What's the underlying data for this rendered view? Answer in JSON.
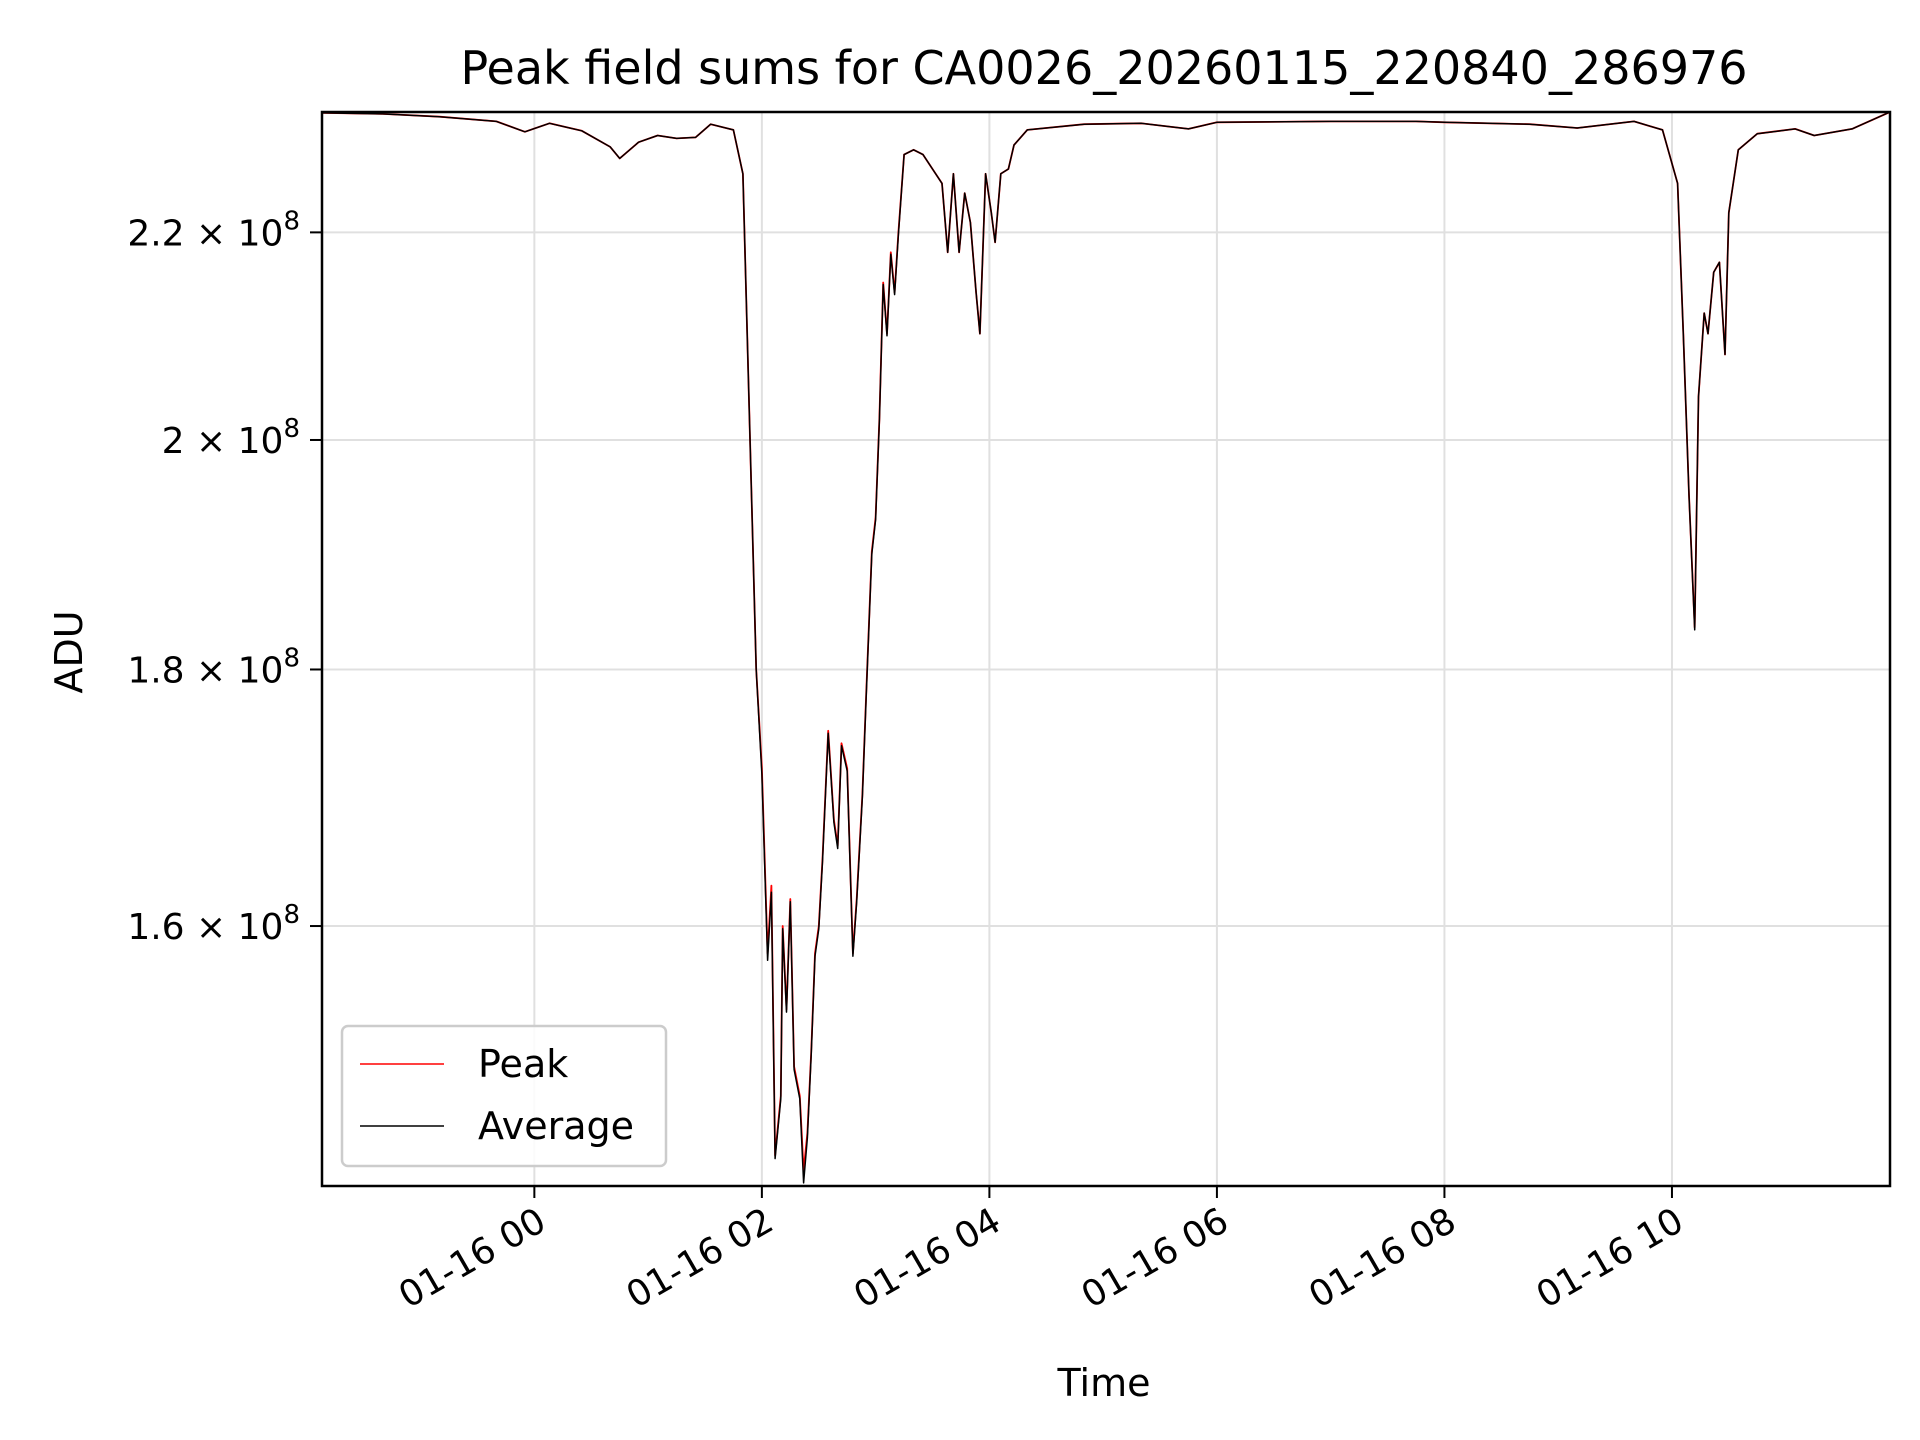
{
  "chart_data": {
    "type": "line",
    "title": "Peak field sums for CA0026_20260115_220840_286976",
    "xlabel": "Time",
    "ylabel": "ADU",
    "yscale": "log",
    "grid": true,
    "legend_position": "lower-left",
    "xlim": [
      "2026-01-15 22:08",
      "2026-01-16 11:55"
    ],
    "ylim": [
      142000000,
      232500000
    ],
    "x_ticks": [
      {
        "x": "2026-01-16 00:00",
        "label": "01-16 00"
      },
      {
        "x": "2026-01-16 02:00",
        "label": "01-16 02"
      },
      {
        "x": "2026-01-16 04:00",
        "label": "01-16 04"
      },
      {
        "x": "2026-01-16 06:00",
        "label": "01-16 06"
      },
      {
        "x": "2026-01-16 08:00",
        "label": "01-16 08"
      },
      {
        "x": "2026-01-16 10:00",
        "label": "01-16 10"
      }
    ],
    "y_ticks": [
      {
        "y": 160000000,
        "mantissa": "1.6",
        "base": "10",
        "exponent": "8"
      },
      {
        "y": 180000000,
        "mantissa": "1.8",
        "base": "10",
        "exponent": "8"
      },
      {
        "y": 200000000,
        "mantissa": "2",
        "base": "10",
        "exponent": "8"
      },
      {
        "y": 220000000,
        "mantissa": "2.2",
        "base": "10",
        "exponent": "8"
      }
    ],
    "series": [
      {
        "name": "Peak",
        "color": "#ff0000",
        "points": [
          [
            "2026-01-15 22:08",
            232400000
          ],
          [
            "2026-01-15 22:40",
            232300000
          ],
          [
            "2026-01-15 23:10",
            232000000
          ],
          [
            "2026-01-15 23:40",
            231500000
          ],
          [
            "2026-01-15 23:55",
            230400000
          ],
          [
            "2026-01-16 00:08",
            231300000
          ],
          [
            "2026-01-16 00:25",
            230500000
          ],
          [
            "2026-01-16 00:40",
            228800000
          ],
          [
            "2026-01-16 00:45",
            227600000
          ],
          [
            "2026-01-16 00:55",
            229300000
          ],
          [
            "2026-01-16 01:05",
            230000000
          ],
          [
            "2026-01-16 01:15",
            229700000
          ],
          [
            "2026-01-16 01:25",
            229800000
          ],
          [
            "2026-01-16 01:33",
            231200000
          ],
          [
            "2026-01-16 01:45",
            230600000
          ],
          [
            "2026-01-16 01:50",
            226000000
          ],
          [
            "2026-01-16 01:53",
            205000000
          ],
          [
            "2026-01-16 01:57",
            180000000
          ],
          [
            "2026-01-16 02:00",
            172000000
          ],
          [
            "2026-01-16 02:03",
            158000000
          ],
          [
            "2026-01-16 02:05",
            163000000
          ],
          [
            "2026-01-16 02:07",
            144000000
          ],
          [
            "2026-01-16 02:10",
            148000000
          ],
          [
            "2026-01-16 02:11",
            160000000
          ],
          [
            "2026-01-16 02:13",
            154000000
          ],
          [
            "2026-01-16 02:15",
            162000000
          ],
          [
            "2026-01-16 02:17",
            150000000
          ],
          [
            "2026-01-16 02:20",
            148000000
          ],
          [
            "2026-01-16 02:22",
            143000000
          ],
          [
            "2026-01-16 02:24",
            145500000
          ],
          [
            "2026-01-16 02:26",
            151000000
          ],
          [
            "2026-01-16 02:28",
            158000000
          ],
          [
            "2026-01-16 02:30",
            160000000
          ],
          [
            "2026-01-16 02:32",
            165000000
          ],
          [
            "2026-01-16 02:35",
            175000000
          ],
          [
            "2026-01-16 02:38",
            168000000
          ],
          [
            "2026-01-16 02:40",
            166000000
          ],
          [
            "2026-01-16 02:42",
            174000000
          ],
          [
            "2026-01-16 02:45",
            172000000
          ],
          [
            "2026-01-16 02:48",
            158000000
          ],
          [
            "2026-01-16 02:50",
            162000000
          ],
          [
            "2026-01-16 02:53",
            170000000
          ],
          [
            "2026-01-16 02:55",
            178000000
          ],
          [
            "2026-01-16 02:58",
            190000000
          ],
          [
            "2026-01-16 03:00",
            193000000
          ],
          [
            "2026-01-16 03:02",
            202000000
          ],
          [
            "2026-01-16 03:04",
            215000000
          ],
          [
            "2026-01-16 03:06",
            210000000
          ],
          [
            "2026-01-16 03:08",
            218000000
          ],
          [
            "2026-01-16 03:10",
            214000000
          ],
          [
            "2026-01-16 03:12",
            220000000
          ],
          [
            "2026-01-16 03:15",
            228000000
          ],
          [
            "2026-01-16 03:20",
            228500000
          ],
          [
            "2026-01-16 03:25",
            228000000
          ],
          [
            "2026-01-16 03:30",
            226500000
          ],
          [
            "2026-01-16 03:35",
            225000000
          ],
          [
            "2026-01-16 03:38",
            218000000
          ],
          [
            "2026-01-16 03:41",
            226000000
          ],
          [
            "2026-01-16 03:44",
            218000000
          ],
          [
            "2026-01-16 03:47",
            224000000
          ],
          [
            "2026-01-16 03:50",
            221000000
          ],
          [
            "2026-01-16 03:53",
            214000000
          ],
          [
            "2026-01-16 03:55",
            210000000
          ],
          [
            "2026-01-16 03:58",
            226000000
          ],
          [
            "2026-01-16 04:01",
            222000000
          ],
          [
            "2026-01-16 04:03",
            219000000
          ],
          [
            "2026-01-16 04:06",
            226000000
          ],
          [
            "2026-01-16 04:10",
            226500000
          ],
          [
            "2026-01-16 04:13",
            229000000
          ],
          [
            "2026-01-16 04:20",
            230600000
          ],
          [
            "2026-01-16 04:50",
            231200000
          ],
          [
            "2026-01-16 05:20",
            231300000
          ],
          [
            "2026-01-16 05:45",
            230700000
          ],
          [
            "2026-01-16 06:00",
            231400000
          ],
          [
            "2026-01-16 07:00",
            231500000
          ],
          [
            "2026-01-16 07:45",
            231500000
          ],
          [
            "2026-01-16 08:00",
            231400000
          ],
          [
            "2026-01-16 08:45",
            231200000
          ],
          [
            "2026-01-16 09:10",
            230800000
          ],
          [
            "2026-01-16 09:40",
            231500000
          ],
          [
            "2026-01-16 09:55",
            230600000
          ],
          [
            "2026-01-16 10:03",
            225000000
          ],
          [
            "2026-01-16 10:06",
            210000000
          ],
          [
            "2026-01-16 10:09",
            195000000
          ],
          [
            "2026-01-16 10:12",
            183500000
          ],
          [
            "2026-01-16 10:14",
            204000000
          ],
          [
            "2026-01-16 10:17",
            212000000
          ],
          [
            "2026-01-16 10:19",
            210000000
          ],
          [
            "2026-01-16 10:22",
            216000000
          ],
          [
            "2026-01-16 10:25",
            217000000
          ],
          [
            "2026-01-16 10:28",
            208000000
          ],
          [
            "2026-01-16 10:30",
            222000000
          ],
          [
            "2026-01-16 10:35",
            228500000
          ],
          [
            "2026-01-16 10:45",
            230200000
          ],
          [
            "2026-01-16 11:05",
            230700000
          ],
          [
            "2026-01-16 11:15",
            230000000
          ],
          [
            "2026-01-16 11:35",
            230700000
          ],
          [
            "2026-01-16 11:55",
            232500000
          ]
        ]
      },
      {
        "name": "Average",
        "color": "#000000",
        "points": [
          [
            "2026-01-15 22:08",
            232400000
          ],
          [
            "2026-01-15 22:40",
            232300000
          ],
          [
            "2026-01-15 23:10",
            232000000
          ],
          [
            "2026-01-15 23:40",
            231500000
          ],
          [
            "2026-01-15 23:55",
            230400000
          ],
          [
            "2026-01-16 00:08",
            231300000
          ],
          [
            "2026-01-16 00:25",
            230500000
          ],
          [
            "2026-01-16 00:40",
            228800000
          ],
          [
            "2026-01-16 00:45",
            227600000
          ],
          [
            "2026-01-16 00:55",
            229300000
          ],
          [
            "2026-01-16 01:05",
            230000000
          ],
          [
            "2026-01-16 01:15",
            229700000
          ],
          [
            "2026-01-16 01:25",
            229800000
          ],
          [
            "2026-01-16 01:33",
            231200000
          ],
          [
            "2026-01-16 01:45",
            230600000
          ],
          [
            "2026-01-16 01:50",
            226000000
          ],
          [
            "2026-01-16 01:53",
            205000000
          ],
          [
            "2026-01-16 01:57",
            180000000
          ],
          [
            "2026-01-16 02:00",
            171500000
          ],
          [
            "2026-01-16 02:03",
            157500000
          ],
          [
            "2026-01-16 02:05",
            162500000
          ],
          [
            "2026-01-16 02:07",
            143800000
          ],
          [
            "2026-01-16 02:10",
            147800000
          ],
          [
            "2026-01-16 02:11",
            159800000
          ],
          [
            "2026-01-16 02:13",
            153800000
          ],
          [
            "2026-01-16 02:15",
            161800000
          ],
          [
            "2026-01-16 02:17",
            149800000
          ],
          [
            "2026-01-16 02:20",
            147800000
          ],
          [
            "2026-01-16 02:22",
            142200000
          ],
          [
            "2026-01-16 02:24",
            145200000
          ],
          [
            "2026-01-16 02:26",
            150800000
          ],
          [
            "2026-01-16 02:28",
            157800000
          ],
          [
            "2026-01-16 02:30",
            159800000
          ],
          [
            "2026-01-16 02:32",
            164800000
          ],
          [
            "2026-01-16 02:35",
            174800000
          ],
          [
            "2026-01-16 02:38",
            167800000
          ],
          [
            "2026-01-16 02:40",
            165800000
          ],
          [
            "2026-01-16 02:42",
            173800000
          ],
          [
            "2026-01-16 02:45",
            171800000
          ],
          [
            "2026-01-16 02:48",
            157800000
          ],
          [
            "2026-01-16 02:50",
            161800000
          ],
          [
            "2026-01-16 02:53",
            169800000
          ],
          [
            "2026-01-16 02:55",
            177800000
          ],
          [
            "2026-01-16 02:58",
            189800000
          ],
          [
            "2026-01-16 03:00",
            192800000
          ],
          [
            "2026-01-16 03:02",
            201800000
          ],
          [
            "2026-01-16 03:04",
            214800000
          ],
          [
            "2026-01-16 03:06",
            209800000
          ],
          [
            "2026-01-16 03:08",
            217800000
          ],
          [
            "2026-01-16 03:10",
            213800000
          ],
          [
            "2026-01-16 03:12",
            219800000
          ],
          [
            "2026-01-16 03:15",
            228000000
          ],
          [
            "2026-01-16 03:20",
            228500000
          ],
          [
            "2026-01-16 03:25",
            228000000
          ],
          [
            "2026-01-16 03:30",
            226500000
          ],
          [
            "2026-01-16 03:35",
            225000000
          ],
          [
            "2026-01-16 03:38",
            218000000
          ],
          [
            "2026-01-16 03:41",
            226000000
          ],
          [
            "2026-01-16 03:44",
            218000000
          ],
          [
            "2026-01-16 03:47",
            224000000
          ],
          [
            "2026-01-16 03:50",
            221000000
          ],
          [
            "2026-01-16 03:53",
            214000000
          ],
          [
            "2026-01-16 03:55",
            210000000
          ],
          [
            "2026-01-16 03:58",
            226000000
          ],
          [
            "2026-01-16 04:01",
            222000000
          ],
          [
            "2026-01-16 04:03",
            219000000
          ],
          [
            "2026-01-16 04:06",
            226000000
          ],
          [
            "2026-01-16 04:10",
            226500000
          ],
          [
            "2026-01-16 04:13",
            229000000
          ],
          [
            "2026-01-16 04:20",
            230600000
          ],
          [
            "2026-01-16 04:50",
            231200000
          ],
          [
            "2026-01-16 05:20",
            231300000
          ],
          [
            "2026-01-16 05:45",
            230700000
          ],
          [
            "2026-01-16 06:00",
            231400000
          ],
          [
            "2026-01-16 07:00",
            231500000
          ],
          [
            "2026-01-16 07:45",
            231500000
          ],
          [
            "2026-01-16 08:00",
            231400000
          ],
          [
            "2026-01-16 08:45",
            231200000
          ],
          [
            "2026-01-16 09:10",
            230800000
          ],
          [
            "2026-01-16 09:40",
            231500000
          ],
          [
            "2026-01-16 09:55",
            230600000
          ],
          [
            "2026-01-16 10:03",
            225000000
          ],
          [
            "2026-01-16 10:06",
            210000000
          ],
          [
            "2026-01-16 10:09",
            195000000
          ],
          [
            "2026-01-16 10:12",
            183300000
          ],
          [
            "2026-01-16 10:14",
            204000000
          ],
          [
            "2026-01-16 10:17",
            212000000
          ],
          [
            "2026-01-16 10:19",
            210000000
          ],
          [
            "2026-01-16 10:22",
            216000000
          ],
          [
            "2026-01-16 10:25",
            217000000
          ],
          [
            "2026-01-16 10:28",
            208000000
          ],
          [
            "2026-01-16 10:30",
            222000000
          ],
          [
            "2026-01-16 10:35",
            228500000
          ],
          [
            "2026-01-16 10:45",
            230200000
          ],
          [
            "2026-01-16 11:05",
            230700000
          ],
          [
            "2026-01-16 11:15",
            230000000
          ],
          [
            "2026-01-16 11:35",
            230700000
          ],
          [
            "2026-01-16 11:55",
            232500000
          ]
        ]
      }
    ]
  }
}
